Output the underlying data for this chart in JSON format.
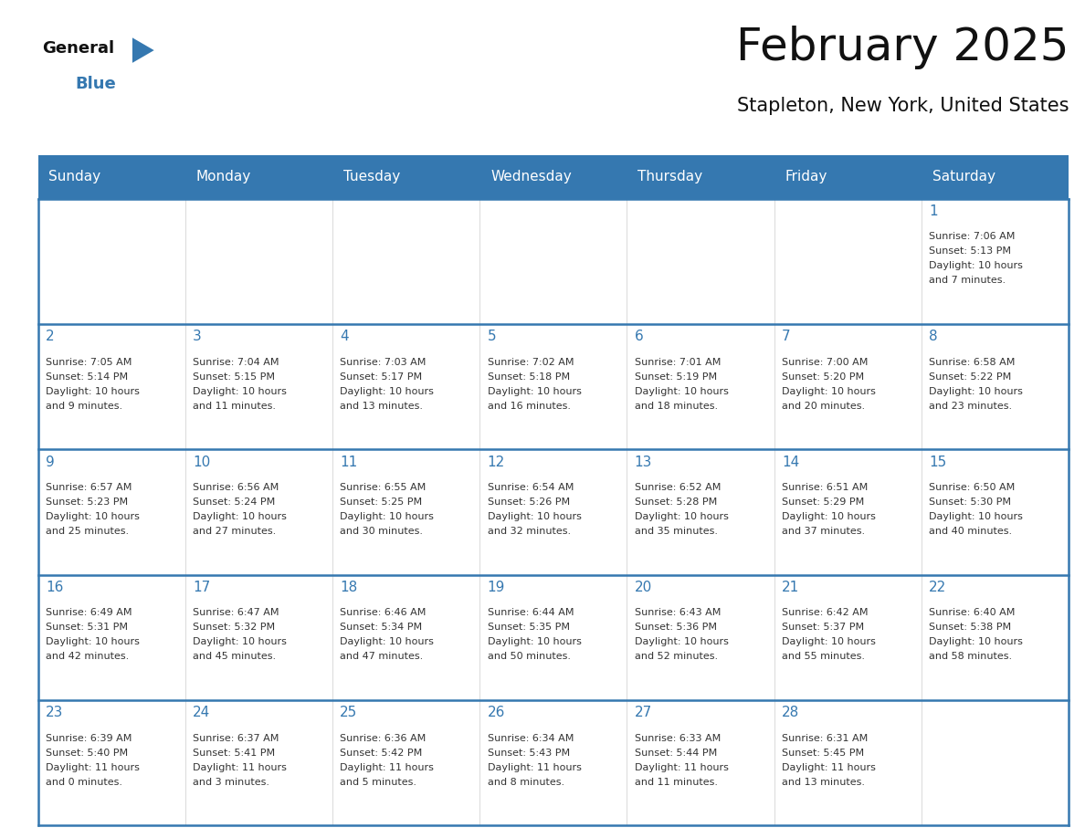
{
  "title": "February 2025",
  "subtitle": "Stapleton, New York, United States",
  "header_color": "#3578b0",
  "header_text_color": "#ffffff",
  "day_names": [
    "Sunday",
    "Monday",
    "Tuesday",
    "Wednesday",
    "Thursday",
    "Friday",
    "Saturday"
  ],
  "cell_bg": "#ffffff",
  "alt_cell_bg": "#f0f4f8",
  "line_color": "#3578b0",
  "day_number_color": "#3578b0",
  "text_color": "#333333",
  "calendar_data": [
    [
      null,
      null,
      null,
      null,
      null,
      null,
      {
        "day": 1,
        "sunrise": "7:06 AM",
        "sunset": "5:13 PM",
        "daylight_hours": 10,
        "daylight_minutes": 7
      }
    ],
    [
      {
        "day": 2,
        "sunrise": "7:05 AM",
        "sunset": "5:14 PM",
        "daylight_hours": 10,
        "daylight_minutes": 9
      },
      {
        "day": 3,
        "sunrise": "7:04 AM",
        "sunset": "5:15 PM",
        "daylight_hours": 10,
        "daylight_minutes": 11
      },
      {
        "day": 4,
        "sunrise": "7:03 AM",
        "sunset": "5:17 PM",
        "daylight_hours": 10,
        "daylight_minutes": 13
      },
      {
        "day": 5,
        "sunrise": "7:02 AM",
        "sunset": "5:18 PM",
        "daylight_hours": 10,
        "daylight_minutes": 16
      },
      {
        "day": 6,
        "sunrise": "7:01 AM",
        "sunset": "5:19 PM",
        "daylight_hours": 10,
        "daylight_minutes": 18
      },
      {
        "day": 7,
        "sunrise": "7:00 AM",
        "sunset": "5:20 PM",
        "daylight_hours": 10,
        "daylight_minutes": 20
      },
      {
        "day": 8,
        "sunrise": "6:58 AM",
        "sunset": "5:22 PM",
        "daylight_hours": 10,
        "daylight_minutes": 23
      }
    ],
    [
      {
        "day": 9,
        "sunrise": "6:57 AM",
        "sunset": "5:23 PM",
        "daylight_hours": 10,
        "daylight_minutes": 25
      },
      {
        "day": 10,
        "sunrise": "6:56 AM",
        "sunset": "5:24 PM",
        "daylight_hours": 10,
        "daylight_minutes": 27
      },
      {
        "day": 11,
        "sunrise": "6:55 AM",
        "sunset": "5:25 PM",
        "daylight_hours": 10,
        "daylight_minutes": 30
      },
      {
        "day": 12,
        "sunrise": "6:54 AM",
        "sunset": "5:26 PM",
        "daylight_hours": 10,
        "daylight_minutes": 32
      },
      {
        "day": 13,
        "sunrise": "6:52 AM",
        "sunset": "5:28 PM",
        "daylight_hours": 10,
        "daylight_minutes": 35
      },
      {
        "day": 14,
        "sunrise": "6:51 AM",
        "sunset": "5:29 PM",
        "daylight_hours": 10,
        "daylight_minutes": 37
      },
      {
        "day": 15,
        "sunrise": "6:50 AM",
        "sunset": "5:30 PM",
        "daylight_hours": 10,
        "daylight_minutes": 40
      }
    ],
    [
      {
        "day": 16,
        "sunrise": "6:49 AM",
        "sunset": "5:31 PM",
        "daylight_hours": 10,
        "daylight_minutes": 42
      },
      {
        "day": 17,
        "sunrise": "6:47 AM",
        "sunset": "5:32 PM",
        "daylight_hours": 10,
        "daylight_minutes": 45
      },
      {
        "day": 18,
        "sunrise": "6:46 AM",
        "sunset": "5:34 PM",
        "daylight_hours": 10,
        "daylight_minutes": 47
      },
      {
        "day": 19,
        "sunrise": "6:44 AM",
        "sunset": "5:35 PM",
        "daylight_hours": 10,
        "daylight_minutes": 50
      },
      {
        "day": 20,
        "sunrise": "6:43 AM",
        "sunset": "5:36 PM",
        "daylight_hours": 10,
        "daylight_minutes": 52
      },
      {
        "day": 21,
        "sunrise": "6:42 AM",
        "sunset": "5:37 PM",
        "daylight_hours": 10,
        "daylight_minutes": 55
      },
      {
        "day": 22,
        "sunrise": "6:40 AM",
        "sunset": "5:38 PM",
        "daylight_hours": 10,
        "daylight_minutes": 58
      }
    ],
    [
      {
        "day": 23,
        "sunrise": "6:39 AM",
        "sunset": "5:40 PM",
        "daylight_hours": 11,
        "daylight_minutes": 0
      },
      {
        "day": 24,
        "sunrise": "6:37 AM",
        "sunset": "5:41 PM",
        "daylight_hours": 11,
        "daylight_minutes": 3
      },
      {
        "day": 25,
        "sunrise": "6:36 AM",
        "sunset": "5:42 PM",
        "daylight_hours": 11,
        "daylight_minutes": 5
      },
      {
        "day": 26,
        "sunrise": "6:34 AM",
        "sunset": "5:43 PM",
        "daylight_hours": 11,
        "daylight_minutes": 8
      },
      {
        "day": 27,
        "sunrise": "6:33 AM",
        "sunset": "5:44 PM",
        "daylight_hours": 11,
        "daylight_minutes": 11
      },
      {
        "day": 28,
        "sunrise": "6:31 AM",
        "sunset": "5:45 PM",
        "daylight_hours": 11,
        "daylight_minutes": 13
      },
      null
    ]
  ],
  "logo_text_general": "General",
  "logo_text_blue": "Blue",
  "logo_color_general": "#111111",
  "logo_color_blue": "#3578b0",
  "logo_triangle_color": "#3578b0",
  "title_fontsize": 36,
  "subtitle_fontsize": 15,
  "header_fontsize": 11,
  "day_num_fontsize": 11,
  "cell_text_fontsize": 8
}
